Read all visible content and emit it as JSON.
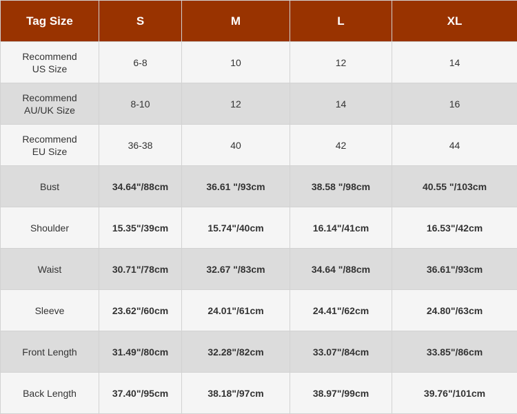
{
  "header": {
    "tag_size_label": "Tag Size",
    "sizes": [
      "S",
      "M",
      "L",
      "XL"
    ]
  },
  "rows": [
    {
      "label_line1": "Recommend",
      "label_line2": "US Size",
      "values": [
        "6-8",
        "10",
        "12",
        "14"
      ],
      "style": "plain",
      "shade": "light"
    },
    {
      "label_line1": "Recommend",
      "label_line2": "AU/UK Size",
      "values": [
        "8-10",
        "12",
        "14",
        "16"
      ],
      "style": "plain",
      "shade": "dark"
    },
    {
      "label_line1": "Recommend",
      "label_line2": "EU Size",
      "values": [
        "36-38",
        "40",
        "42",
        "44"
      ],
      "style": "plain",
      "shade": "light"
    },
    {
      "label_line1": "Bust",
      "label_line2": "",
      "values": [
        "34.64\"/88cm",
        "36.61 \"/93cm",
        "38.58 \"/98cm",
        "40.55 \"/103cm"
      ],
      "style": "bold",
      "shade": "dark"
    },
    {
      "label_line1": "Shoulder",
      "label_line2": "",
      "values": [
        "15.35\"/39cm",
        "15.74\"/40cm",
        "16.14\"/41cm",
        "16.53\"/42cm"
      ],
      "style": "bold",
      "shade": "light"
    },
    {
      "label_line1": "Waist",
      "label_line2": "",
      "values": [
        "30.71\"/78cm",
        "32.67 \"/83cm",
        "34.64 \"/88cm",
        "36.61\"/93cm"
      ],
      "style": "bold",
      "shade": "dark"
    },
    {
      "label_line1": "Sleeve",
      "label_line2": "",
      "values": [
        "23.62\"/60cm",
        "24.01\"/61cm",
        "24.41\"/62cm",
        "24.80\"/63cm"
      ],
      "style": "bold",
      "shade": "light"
    },
    {
      "label_line1": "Front Length",
      "label_line2": "",
      "values": [
        "31.49\"/80cm",
        "32.28\"/82cm",
        "33.07\"/84cm",
        "33.85\"/86cm"
      ],
      "style": "bold",
      "shade": "dark"
    },
    {
      "label_line1": "Back Length",
      "label_line2": "",
      "values": [
        "37.40\"/95cm",
        "38.18\"/97cm",
        "38.97\"/99cm",
        "39.76\"/101cm"
      ],
      "style": "bold",
      "shade": "light"
    }
  ],
  "colors": {
    "header_bg": "#993300",
    "header_text": "#ffffff",
    "row_light": "#f5f5f5",
    "row_dark": "#dcdcdc"
  }
}
